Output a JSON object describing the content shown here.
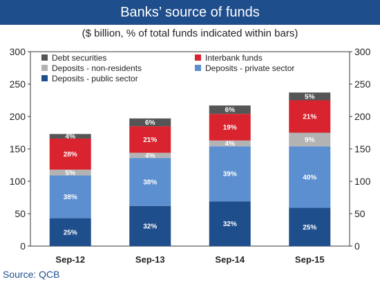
{
  "title": "Banks’ source of funds",
  "subtitle": "($ billion, % of total funds indicated within bars)",
  "source": "Source: QCB",
  "chart_data": {
    "type": "bar",
    "stacked": true,
    "categories": [
      "Sep-12",
      "Sep-13",
      "Sep-14",
      "Sep-15"
    ],
    "ylim": [
      0,
      300
    ],
    "yticks": [
      0,
      50,
      100,
      150,
      200,
      250,
      300
    ],
    "secondary_yaxis": true,
    "grid": false,
    "legend_position": "top-left",
    "series": [
      {
        "name": "Deposits - public sector",
        "color": "#1f4e8c",
        "values": [
          43,
          62,
          69,
          59
        ],
        "labels": [
          "25%",
          "32%",
          "32%",
          "25%"
        ]
      },
      {
        "name": "Deposits - private sector",
        "color": "#5b8fd0",
        "values": [
          66,
          74,
          85,
          95
        ],
        "labels": [
          "38%",
          "38%",
          "39%",
          "40%"
        ]
      },
      {
        "name": "Deposits - non-residents",
        "color": "#b3b3b3",
        "values": [
          9,
          8,
          9,
          21
        ],
        "labels": [
          "5%",
          "4%",
          "4%",
          "9%"
        ]
      },
      {
        "name": "Interbank funds",
        "color": "#d9232e",
        "values": [
          48,
          41,
          41,
          50
        ],
        "labels": [
          "28%",
          "21%",
          "19%",
          "21%"
        ]
      },
      {
        "name": "Debt securities",
        "color": "#555555",
        "values": [
          7,
          12,
          13,
          12
        ],
        "labels": [
          "4%",
          "6%",
          "6%",
          "5%"
        ]
      }
    ]
  }
}
